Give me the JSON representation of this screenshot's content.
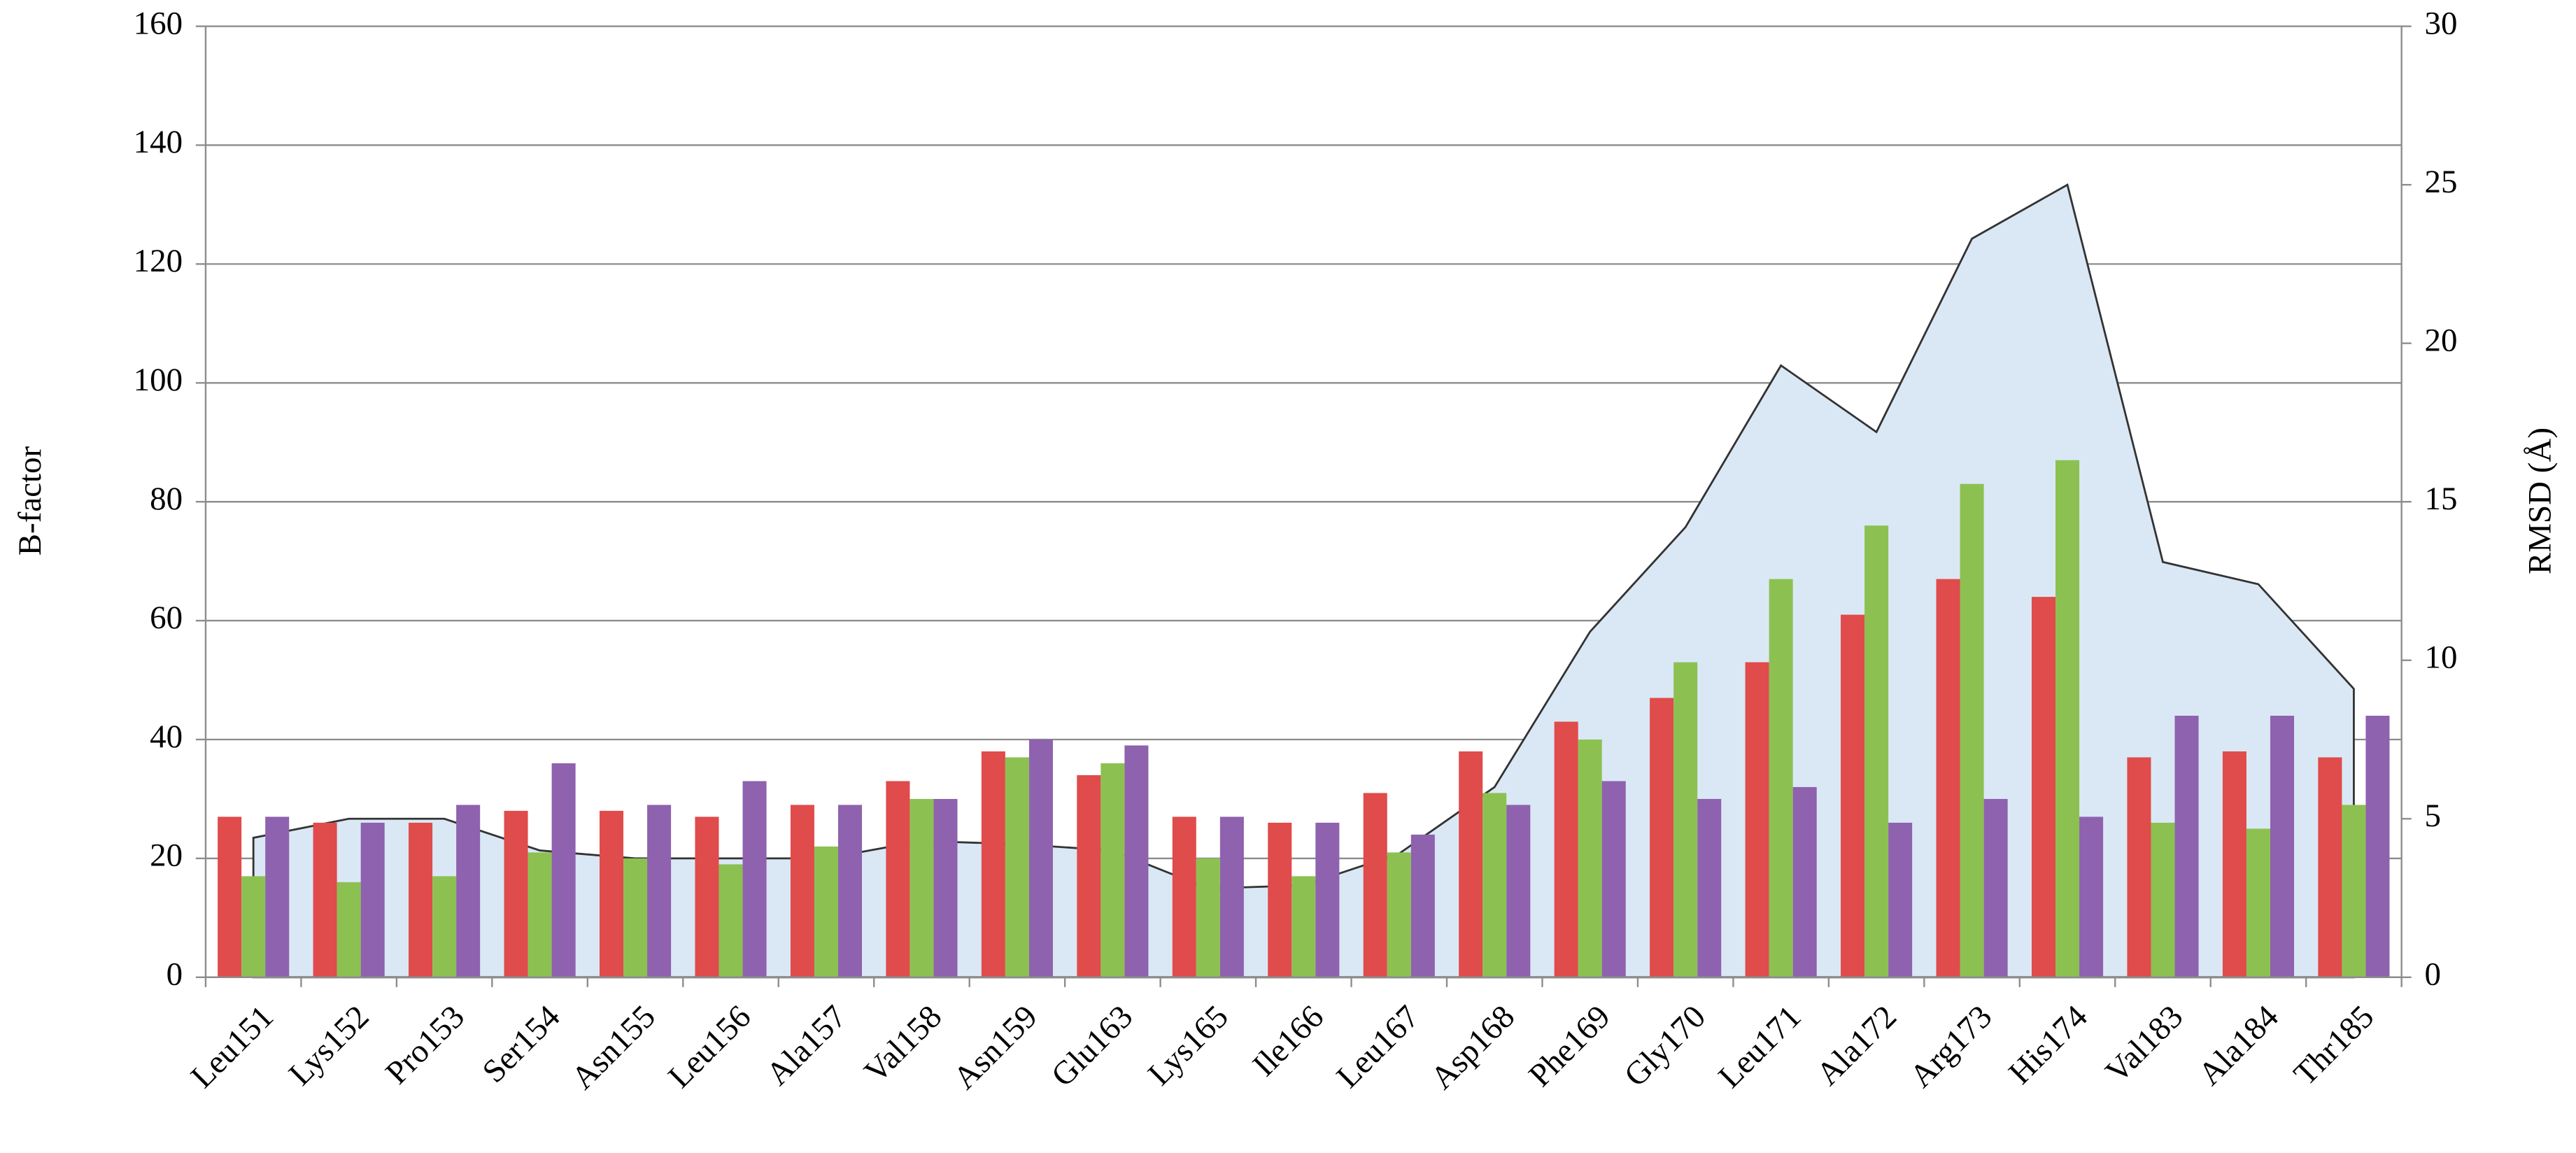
{
  "chart_data": {
    "type": "bar",
    "ylabel": "B-factor",
    "y2label": "RMSD (Å)",
    "categories": [
      "Leu151",
      "Lys152",
      "Pro153",
      "Ser154",
      "Asn155",
      "Leu156",
      "Ala157",
      "Val158",
      "Asn159",
      "Glu163",
      "Lys165",
      "Ile166",
      "Leu167",
      "Asp168",
      "Phe169",
      "Gly170",
      "Leu171",
      "Ala172",
      "Arg173",
      "His174",
      "Val183",
      "Ala184",
      "Thr185"
    ],
    "ylim": [
      0,
      160
    ],
    "yticks": [
      0,
      20,
      40,
      60,
      80,
      100,
      120,
      140,
      160
    ],
    "y2lim": [
      0,
      30
    ],
    "y2ticks": [
      0,
      5,
      10,
      15,
      20,
      25,
      30
    ],
    "grid": true,
    "series": [
      {
        "type": "area",
        "axis": "y2",
        "color": "#dae8f5",
        "values": [
          4.4,
          5.0,
          5.0,
          4.0,
          3.75,
          3.75,
          3.75,
          4.3,
          4.2,
          4.0,
          2.8,
          2.9,
          3.9,
          6.0,
          10.9,
          14.2,
          19.3,
          17.2,
          23.3,
          25.0,
          13.1,
          12.4,
          9.1
        ]
      },
      {
        "type": "bar",
        "color": "#e04b4b",
        "values": [
          27,
          26,
          26,
          28,
          28,
          27,
          29,
          33,
          38,
          34,
          27,
          26,
          31,
          38,
          43,
          47,
          53,
          61,
          67,
          64,
          37,
          38,
          37
        ]
      },
      {
        "type": "bar",
        "color": "#8cc152",
        "values": [
          17,
          16,
          17,
          21,
          20,
          19,
          22,
          30,
          37,
          36,
          20,
          17,
          21,
          31,
          40,
          53,
          67,
          76,
          83,
          87,
          26,
          25,
          29
        ]
      },
      {
        "type": "bar",
        "color": "#8e62ae",
        "values": [
          27,
          26,
          29,
          36,
          29,
          33,
          29,
          30,
          40,
          39,
          27,
          26,
          24,
          29,
          33,
          30,
          32,
          26,
          30,
          27,
          44,
          44,
          44
        ]
      }
    ]
  }
}
